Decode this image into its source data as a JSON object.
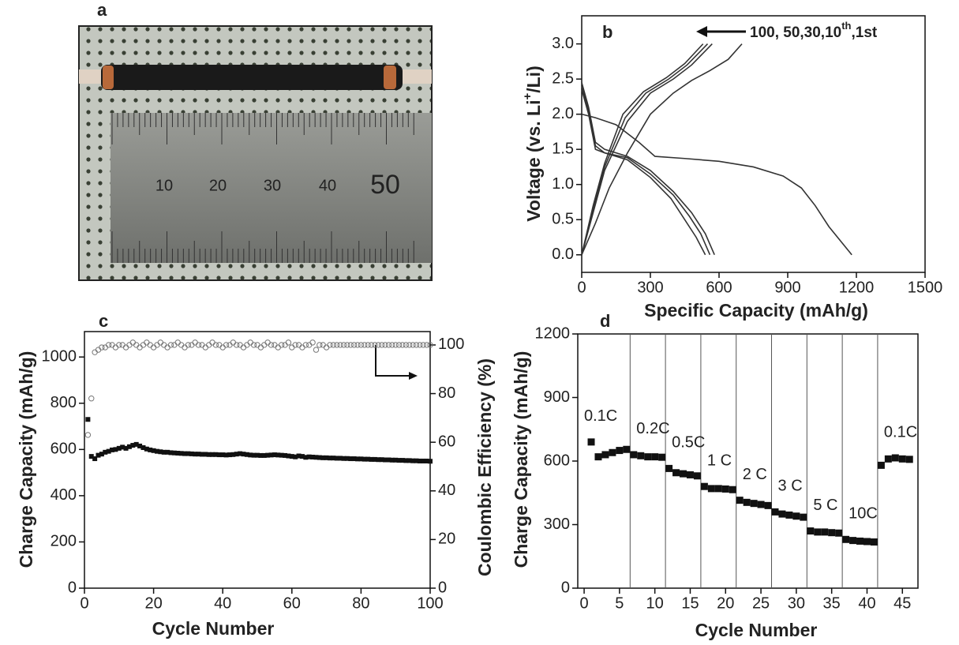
{
  "photo": {
    "label": "a",
    "ruler_labels": [
      "10",
      "20",
      "30",
      "40",
      "50"
    ]
  },
  "chart_data": [
    {
      "type": "line",
      "label": "b",
      "xlabel": "Specific Capacity (mAh/g)",
      "ylabel_parts": [
        "Voltage (vs. Li",
        "+",
        "/Li)"
      ],
      "annotation_parts": [
        "100, 50,30,10",
        "th",
        ",1st"
      ],
      "xlim": [
        0,
        1500
      ],
      "ylim": [
        -0.25,
        3.4
      ],
      "xticks": [
        0,
        300,
        600,
        900,
        1200,
        1500
      ],
      "yticks": [
        {
          "value": 0,
          "label": "0.0"
        },
        {
          "value": 0.5,
          "label": "0.5"
        },
        {
          "value": 1,
          "label": "1.0"
        },
        {
          "value": 1.5,
          "label": "1.5"
        },
        {
          "value": 2,
          "label": "2.0"
        },
        {
          "value": 2.5,
          "label": "2.5"
        },
        {
          "value": 3,
          "label": "3.0"
        }
      ],
      "series": [
        {
          "color": "#333333",
          "x": [
            0,
            60,
            150,
            250,
            320,
            450,
            600,
            750,
            880,
            960,
            1020,
            1080,
            1180
          ],
          "values": [
            2.0,
            1.95,
            1.85,
            1.6,
            1.4,
            1.37,
            1.33,
            1.25,
            1.12,
            0.95,
            0.7,
            0.4,
            0.0
          ]
        },
        {
          "color": "#333333",
          "x": [
            0,
            60,
            120,
            200,
            300,
            400,
            480,
            560,
            640,
            700
          ],
          "values": [
            0.0,
            0.45,
            0.95,
            1.45,
            2.0,
            2.3,
            2.48,
            2.62,
            2.78,
            3.0
          ]
        },
        {
          "color": "#333333",
          "x": [
            0,
            30,
            60,
            100,
            200,
            300,
            400,
            480,
            540,
            580
          ],
          "values": [
            2.45,
            2.1,
            1.6,
            1.5,
            1.4,
            1.2,
            0.9,
            0.6,
            0.3,
            0.0
          ]
        },
        {
          "color": "#333333",
          "x": [
            0,
            30,
            60,
            100,
            200,
            300,
            400,
            470,
            520,
            560
          ],
          "values": [
            2.4,
            2.05,
            1.55,
            1.45,
            1.38,
            1.15,
            0.85,
            0.55,
            0.3,
            0.0
          ]
        },
        {
          "color": "#333333",
          "x": [
            0,
            30,
            60,
            100,
            200,
            300,
            390,
            450,
            500,
            540
          ],
          "values": [
            2.35,
            2.0,
            1.5,
            1.45,
            1.35,
            1.1,
            0.8,
            0.5,
            0.25,
            0.0
          ]
        },
        {
          "color": "#333333",
          "x": [
            0,
            50,
            100,
            200,
            300,
            400,
            480,
            570
          ],
          "values": [
            0.0,
            0.6,
            1.2,
            1.9,
            2.3,
            2.5,
            2.7,
            3.0
          ]
        },
        {
          "color": "#333333",
          "x": [
            0,
            50,
            100,
            190,
            280,
            380,
            460,
            550
          ],
          "values": [
            0.0,
            0.65,
            1.25,
            1.95,
            2.3,
            2.5,
            2.7,
            3.0
          ]
        },
        {
          "color": "#333333",
          "x": [
            0,
            50,
            100,
            180,
            270,
            370,
            450,
            530
          ],
          "values": [
            0.0,
            0.7,
            1.3,
            2.0,
            2.32,
            2.52,
            2.72,
            3.0
          ]
        }
      ]
    },
    {
      "type": "scatter",
      "label": "c",
      "xlabel": "Cycle Number",
      "ylabel": "Charge Capacity (mAh/g)",
      "y2label": "Coulombic Efficiency (%)",
      "xlim": [
        0,
        100
      ],
      "ylim": [
        0,
        1110
      ],
      "y2lim": [
        0,
        105.5
      ],
      "xticks": [
        0,
        20,
        40,
        60,
        80,
        100
      ],
      "yticks": [
        0,
        200,
        400,
        600,
        800,
        1000
      ],
      "y2ticks": [
        0,
        20,
        40,
        60,
        80,
        100
      ],
      "x": [
        1,
        2,
        3,
        4,
        5,
        6,
        7,
        8,
        9,
        10,
        11,
        12,
        13,
        14,
        15,
        16,
        17,
        18,
        19,
        20,
        21,
        22,
        23,
        24,
        25,
        26,
        27,
        28,
        29,
        30,
        31,
        32,
        33,
        34,
        35,
        36,
        37,
        38,
        39,
        40,
        41,
        42,
        43,
        44,
        45,
        46,
        47,
        48,
        49,
        50,
        51,
        52,
        53,
        54,
        55,
        56,
        57,
        58,
        59,
        60,
        61,
        62,
        63,
        64,
        65,
        66,
        67,
        68,
        69,
        70,
        71,
        72,
        73,
        74,
        75,
        76,
        77,
        78,
        79,
        80,
        81,
        82,
        83,
        84,
        85,
        86,
        87,
        88,
        89,
        90,
        91,
        92,
        93,
        94,
        95,
        96,
        97,
        98,
        99,
        100
      ],
      "series": [
        {
          "color": "#111111",
          "marker": "square",
          "values": [
            730,
            570,
            560,
            575,
            580,
            588,
            592,
            598,
            600,
            605,
            610,
            605,
            612,
            618,
            622,
            615,
            608,
            602,
            598,
            595,
            592,
            590,
            588,
            588,
            586,
            585,
            584,
            583,
            582,
            582,
            581,
            580,
            580,
            579,
            579,
            578,
            578,
            578,
            577,
            577,
            576,
            577,
            578,
            580,
            582,
            580,
            578,
            576,
            575,
            575,
            574,
            574,
            575,
            576,
            577,
            576,
            575,
            574,
            572,
            570,
            568,
            572,
            570,
            566,
            568,
            567,
            566,
            565,
            564,
            564,
            563,
            563,
            562,
            562,
            561,
            561,
            560,
            560,
            559,
            559,
            558,
            558,
            557,
            557,
            556,
            556,
            555,
            555,
            554,
            554,
            553,
            553,
            552,
            552,
            551,
            551,
            550,
            550,
            550,
            549
          ]
        },
        {
          "color": "#777777",
          "marker": "circle",
          "axis": "y2",
          "values": [
            63,
            78,
            97,
            98,
            99,
            99,
            100,
            100,
            99,
            100,
            100,
            99,
            100,
            101,
            100,
            99,
            100,
            101,
            100,
            99,
            100,
            101,
            100,
            99,
            100,
            100,
            101,
            100,
            99,
            100,
            100,
            101,
            100,
            100,
            99,
            100,
            101,
            100,
            100,
            99,
            100,
            100,
            101,
            100,
            100,
            99,
            100,
            101,
            100,
            100,
            99,
            100,
            101,
            100,
            100,
            99,
            100,
            100,
            101,
            99,
            100,
            100,
            99,
            100,
            100,
            101,
            98,
            100,
            100,
            99,
            100,
            100,
            100,
            100,
            100,
            100,
            100,
            100,
            100,
            100,
            100,
            100,
            100,
            100,
            100,
            100,
            100,
            100,
            100,
            100,
            100,
            100,
            100,
            100,
            100,
            100,
            100,
            100,
            100,
            100
          ]
        }
      ]
    },
    {
      "type": "scatter",
      "label": "d",
      "xlabel": "Cycle Number",
      "ylabel": "Charge Capacity (mAh/g)",
      "xlim": [
        -0.9,
        47.2
      ],
      "ylim": [
        0,
        1200
      ],
      "xticks": [
        0,
        5,
        10,
        15,
        20,
        25,
        30,
        35,
        40,
        45
      ],
      "yticks": [
        0,
        300,
        600,
        900,
        1200
      ],
      "dividers": [
        6.5,
        11.5,
        16.5,
        21.5,
        26.5,
        31.5,
        36.5,
        41.5
      ],
      "segment_labels": [
        "0.1C",
        "0.2C",
        "0.5C",
        "1 C",
        "2 C",
        "3 C",
        "5 C",
        "10C",
        "0.1C"
      ],
      "x": [
        1,
        2,
        3,
        4,
        5,
        6,
        7,
        8,
        9,
        10,
        11,
        12,
        13,
        14,
        15,
        16,
        17,
        18,
        19,
        20,
        21,
        22,
        23,
        24,
        25,
        26,
        27,
        28,
        29,
        30,
        31,
        32,
        33,
        34,
        35,
        36,
        37,
        38,
        39,
        40,
        41,
        42,
        43,
        44,
        45,
        46
      ],
      "series": [
        {
          "color": "#111111",
          "marker": "square-big",
          "values": [
            690,
            620,
            630,
            640,
            650,
            655,
            630,
            625,
            620,
            620,
            618,
            565,
            545,
            540,
            535,
            530,
            480,
            470,
            470,
            468,
            465,
            415,
            405,
            400,
            395,
            390,
            360,
            350,
            345,
            340,
            335,
            270,
            265,
            265,
            262,
            260,
            230,
            225,
            222,
            220,
            218,
            580,
            610,
            615,
            610,
            608
          ]
        }
      ]
    }
  ]
}
